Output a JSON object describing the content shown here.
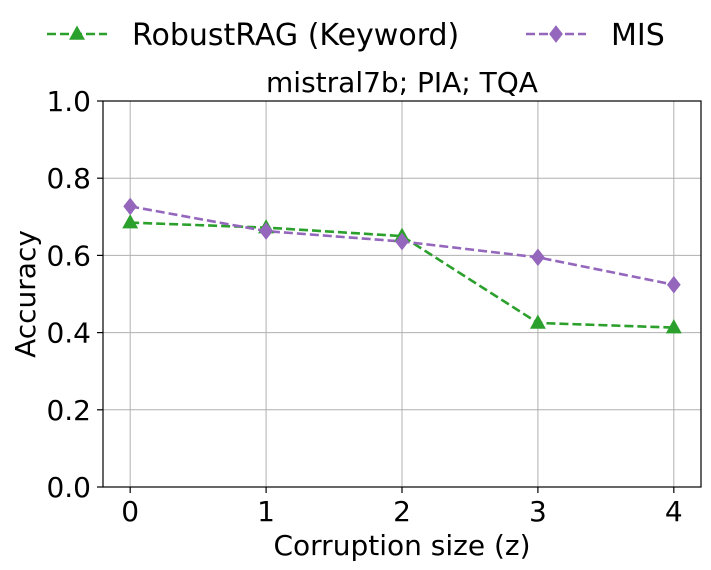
{
  "chart_data": {
    "type": "line",
    "title": "mistral7b; PIA; TQA",
    "xlabel": "Corruption size (z)",
    "ylabel": "Accuracy",
    "x": [
      0,
      1,
      2,
      3,
      4
    ],
    "x_ticks": [
      "0",
      "1",
      "2",
      "3",
      "4"
    ],
    "y_ticks": [
      "0.0",
      "0.2",
      "0.4",
      "0.6",
      "0.8",
      "1.0"
    ],
    "xlim": [
      -0.2,
      4.2
    ],
    "ylim": [
      0.0,
      1.0
    ],
    "grid": true,
    "legend_position": "top, outside plot",
    "series": [
      {
        "name": "RobustRAG (Keyword)",
        "values": [
          0.685,
          0.672,
          0.65,
          0.425,
          0.413
        ],
        "color": "#2ca02c",
        "marker": "triangle",
        "linestyle": "dashed"
      },
      {
        "name": "MIS",
        "values": [
          0.727,
          0.663,
          0.636,
          0.595,
          0.524
        ],
        "color": "#9467bd",
        "marker": "diamond",
        "linestyle": "dashed"
      }
    ]
  }
}
